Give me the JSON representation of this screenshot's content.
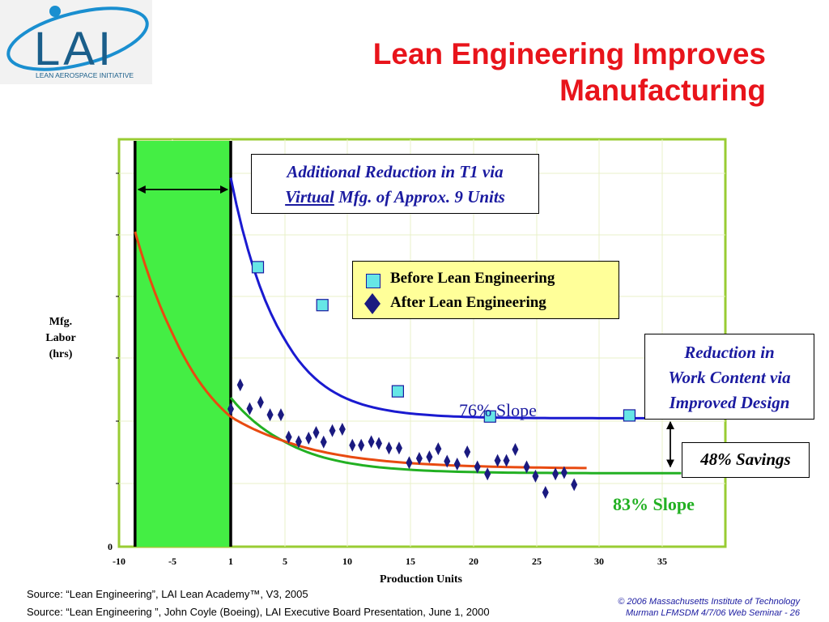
{
  "logo": {
    "text": "LAI",
    "subtitle": "LEAN AEROSPACE INITIATIVE",
    "colors": {
      "ring": "#1a8fd0",
      "letters": "#1a5e8a"
    }
  },
  "slide": {
    "title_line1": "Lean Engineering Improves",
    "title_line2": "Manufacturing"
  },
  "chart_data": {
    "type": "scatter",
    "xlabel": "Production Units",
    "ylabel_lines": [
      "Mfg.",
      "Labor",
      "(hrs)"
    ],
    "x_ticks": [
      "-10",
      "-5",
      "1",
      "5",
      "10",
      "15",
      "20",
      "25",
      "30",
      "35"
    ],
    "y_ticks": [
      "0"
    ],
    "xlim": [
      -10,
      35
    ],
    "ylim": [
      0,
      100
    ],
    "grid": true,
    "shaded_region": {
      "x_from": -8.5,
      "x_to": 1,
      "color": "#44ee44"
    },
    "legend_position": "center-right",
    "series": [
      {
        "name": "Before Lean Engineering",
        "marker": "square",
        "color": "#66e6e6",
        "points": [
          [
            3,
            78.8
          ],
          [
            8,
            68.1
          ],
          [
            14,
            43.8
          ],
          [
            21.3,
            36.7
          ],
          [
            32.4,
            37.0
          ]
        ]
      },
      {
        "name": "After Lean Engineering",
        "marker": "diamond",
        "color": "#1a1a80",
        "points": [
          [
            1,
            38.8
          ],
          [
            1.7,
            45.6
          ],
          [
            2.4,
            38.9
          ],
          [
            3.2,
            40.7
          ],
          [
            3.9,
            37.2
          ],
          [
            4.7,
            37.2
          ],
          [
            5.3,
            30.9
          ],
          [
            6.1,
            29.6
          ],
          [
            6.9,
            30.6
          ],
          [
            7.5,
            32.2
          ],
          [
            8.1,
            29.5
          ],
          [
            8.8,
            32.7
          ],
          [
            9.6,
            33.1
          ],
          [
            10.4,
            28.6
          ],
          [
            11.1,
            28.6
          ],
          [
            11.9,
            29.6
          ],
          [
            12.5,
            29.1
          ],
          [
            13.3,
            27.8
          ],
          [
            14.1,
            27.8
          ],
          [
            14.9,
            23.7
          ],
          [
            15.7,
            24.9
          ],
          [
            16.5,
            25.3
          ],
          [
            17.2,
            27.6
          ],
          [
            17.9,
            24.1
          ],
          [
            18.7,
            23.3
          ],
          [
            19.5,
            26.7
          ],
          [
            20.3,
            22.5
          ],
          [
            21.1,
            20.5
          ],
          [
            21.9,
            24.3
          ],
          [
            22.6,
            24.3
          ],
          [
            23.3,
            27.4
          ],
          [
            24.2,
            22.5
          ],
          [
            24.9,
            19.9
          ],
          [
            25.7,
            15.3
          ],
          [
            26.5,
            20.5
          ],
          [
            27.2,
            20.9
          ],
          [
            28,
            17.5
          ]
        ]
      }
    ],
    "curves": [
      {
        "name": "76% Slope",
        "color": "#1a1ad0",
        "x_from": 1,
        "x_to": 35,
        "y_start": 104,
        "y_end": 36.2
      },
      {
        "name": "83% Slope",
        "color": "#22b022",
        "x_from": 1,
        "x_to": 36.5,
        "y_start": 42.0,
        "y_end": 20.7
      },
      {
        "name": "",
        "color": "#e84a10",
        "x_from": -8.5,
        "x_to": 29,
        "y_start": 88.8,
        "y_end": 22.0
      }
    ],
    "annotations": {
      "t1_line1": "Additional Reduction in T1 via",
      "t1_virtual": "Virtual",
      "t1_rest": " Mfg. of Approx. 9 Units",
      "work_line1": "Reduction in",
      "work_line2": "Work Content via",
      "work_line3": "Improved Design",
      "savings": "48% Savings",
      "slope_before": "76% Slope",
      "slope_after": "83% Slope"
    }
  },
  "footer": {
    "source1": "Source: “Lean Engineering”, LAI Lean Academy™, V3, 2005",
    "source2": "Source: “Lean Engineering ”, John Coyle (Boeing),  LAI Executive Board Presentation, June 1, 2000",
    "copyright": "© 2006 Massachusetts Institute of Technology",
    "course": "Murman LFMSDM 4/7/06 Web Seminar  - 26"
  }
}
